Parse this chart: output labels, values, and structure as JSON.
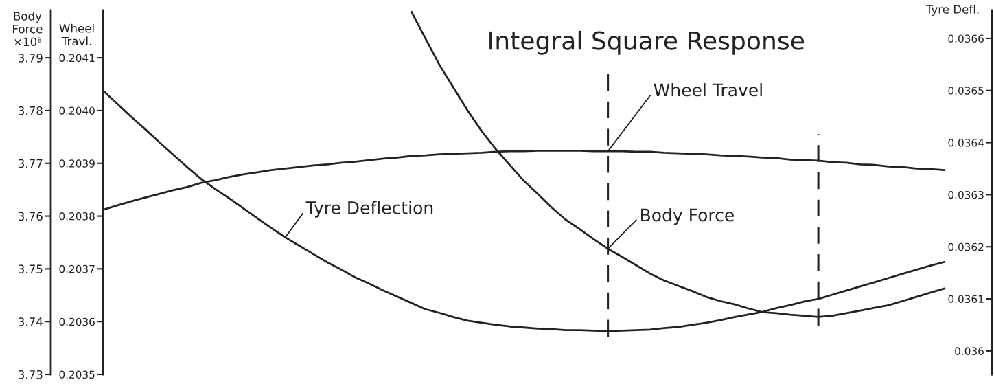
{
  "chart_data": {
    "type": "line",
    "title": "Integral Square Response",
    "ylabel": "Body Force ×10⁸",
    "y2label": "Tyre Defl.",
    "y3label": "Wheel Travl.",
    "categories": [
      null,
      null,
      null,
      null,
      null,
      null,
      null,
      null,
      null,
      null,
      null,
      null,
      null,
      null,
      null,
      null,
      null,
      null,
      null,
      null,
      null,
      null,
      null,
      null,
      null,
      null,
      null,
      null,
      null,
      null,
      null,
      null,
      null,
      null,
      null,
      null,
      null,
      null,
      null,
      null,
      null,
      null,
      null,
      null,
      null,
      null,
      null,
      null,
      null,
      null,
      null,
      null,
      null,
      null,
      null,
      null,
      null,
      null,
      null,
      null,
      null
    ],
    "series": [
      {
        "name": "Body Force",
        "color": "#222222",
        "axis": "y",
        "values": [
          null,
          null,
          null,
          null,
          null,
          null,
          null,
          null,
          null,
          null,
          null,
          null,
          null,
          null,
          null,
          null,
          null,
          null,
          null,
          null,
          null,
          null,
          3.7987,
          3.7936,
          3.7886,
          3.7843,
          3.78,
          3.7761,
          3.7727,
          3.7697,
          3.7667,
          3.7642,
          3.7616,
          3.7593,
          3.7575,
          3.7556,
          3.7538,
          3.7523,
          3.7507,
          3.7491,
          3.7478,
          3.7468,
          3.7458,
          3.7447,
          3.7439,
          3.7433,
          3.7425,
          3.7418,
          3.7416,
          3.7413,
          3.7411,
          3.7409,
          3.7411,
          3.7416,
          3.7421,
          3.7426,
          3.7431,
          3.7439,
          3.7447,
          3.7455,
          3.7463
        ]
      },
      {
        "name": "Wheel Travel",
        "color": "#222222",
        "axis": "y3",
        "values": [
          0.203812,
          0.20382,
          0.203828,
          0.203835,
          0.203842,
          0.203849,
          0.203855,
          0.203863,
          0.203868,
          0.203874,
          0.203879,
          0.203883,
          0.203887,
          0.20389,
          0.203893,
          0.203896,
          0.203898,
          0.203901,
          0.203903,
          0.203906,
          0.203909,
          0.203911,
          0.203914,
          0.203915,
          0.203917,
          0.203918,
          0.203919,
          0.20392,
          0.203922,
          0.203923,
          0.203923,
          0.203924,
          0.203924,
          0.203924,
          0.203924,
          0.203923,
          0.203923,
          0.203923,
          0.203922,
          0.203922,
          0.20392,
          0.203919,
          0.203918,
          0.203917,
          0.203915,
          0.203914,
          0.203913,
          0.203911,
          0.20391,
          0.203907,
          0.203906,
          0.203905,
          0.203902,
          0.203901,
          0.203898,
          0.203897,
          0.203894,
          0.203893,
          0.20389,
          0.203889,
          0.203887
        ]
      },
      {
        "name": "Tyre Deflection",
        "color": "#222222",
        "axis": "y2",
        "values": [
          0.0365,
          0.036475,
          0.03645,
          0.036426,
          0.036401,
          0.036377,
          0.036353,
          0.03633,
          0.036311,
          0.036293,
          0.036274,
          0.036255,
          0.036236,
          0.036218,
          0.036202,
          0.036186,
          0.03617,
          0.036156,
          0.036141,
          0.036129,
          0.036116,
          0.036104,
          0.036092,
          0.03608,
          0.036073,
          0.036065,
          0.036058,
          0.036054,
          0.03605,
          0.036047,
          0.036045,
          0.036043,
          0.036042,
          0.03604,
          0.03604,
          0.036039,
          0.036038,
          0.036039,
          0.03604,
          0.036041,
          0.036044,
          0.036046,
          0.03605,
          0.036054,
          0.036059,
          0.036065,
          0.03607,
          0.036075,
          0.036082,
          0.036088,
          0.036095,
          0.0361,
          0.036108,
          0.036116,
          0.036124,
          0.036132,
          0.03614,
          0.036148,
          0.036156,
          0.036164,
          0.036171
        ]
      }
    ],
    "ylim": [
      3.73,
      3.799
    ],
    "yticks": [
      3.73,
      3.74,
      3.75,
      3.76,
      3.77,
      3.78,
      3.79
    ],
    "y3lim": [
      0.2035,
      0.20419
    ],
    "y3ticks": [
      0.2035,
      0.2036,
      0.2037,
      0.2038,
      0.2039,
      {
        "value": 0.204,
        "label": "0.2040"
      },
      0.2041
    ],
    "y2lim": [
      0.035955,
      0.036654
    ],
    "y2ticks": [
      0.036,
      0.0361,
      0.0362,
      0.0363,
      0.0364,
      0.0365,
      0.0366
    ],
    "line_style": "solid"
  }
}
